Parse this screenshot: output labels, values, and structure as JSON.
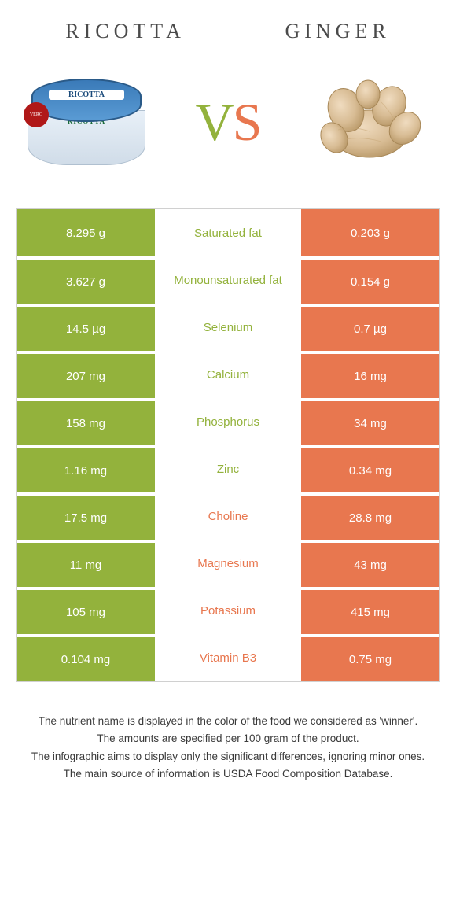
{
  "colors": {
    "left": "#93b23c",
    "right": "#e8774f",
    "text_dark": "#4a4a4a"
  },
  "header": {
    "left_title": "Ricotta",
    "right_title": "Ginger",
    "vs_v": "V",
    "vs_s": "S"
  },
  "rows": [
    {
      "left": "8.295 g",
      "label": "Saturated fat",
      "right": "0.203 g",
      "winner": "left"
    },
    {
      "left": "3.627 g",
      "label": "Monounsaturated fat",
      "right": "0.154 g",
      "winner": "left"
    },
    {
      "left": "14.5 µg",
      "label": "Selenium",
      "right": "0.7 µg",
      "winner": "left"
    },
    {
      "left": "207 mg",
      "label": "Calcium",
      "right": "16 mg",
      "winner": "left"
    },
    {
      "left": "158 mg",
      "label": "Phosphorus",
      "right": "34 mg",
      "winner": "left"
    },
    {
      "left": "1.16 mg",
      "label": "Zinc",
      "right": "0.34 mg",
      "winner": "left"
    },
    {
      "left": "17.5 mg",
      "label": "Choline",
      "right": "28.8 mg",
      "winner": "right"
    },
    {
      "left": "11 mg",
      "label": "Magnesium",
      "right": "43 mg",
      "winner": "right"
    },
    {
      "left": "105 mg",
      "label": "Potassium",
      "right": "415 mg",
      "winner": "right"
    },
    {
      "left": "0.104 mg",
      "label": "Vitamin B3",
      "right": "0.75 mg",
      "winner": "right"
    }
  ],
  "footer": {
    "line1": "The nutrient name is displayed in the color of the food we considered as 'winner'.",
    "line2": "The amounts are specified per 100 gram of the product.",
    "line3": "The infographic aims to display only the significant differences, ignoring minor ones.",
    "line4": "The main source of information is USDA Food Composition Database."
  }
}
